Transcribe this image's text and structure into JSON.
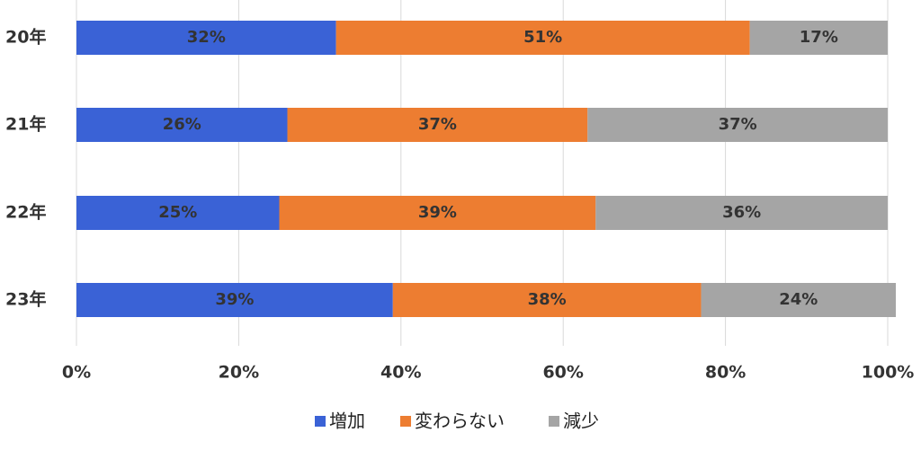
{
  "chart_data": {
    "type": "stacked-bar-horizontal",
    "categories": [
      "20年",
      "21年",
      "22年",
      "23年"
    ],
    "series": [
      {
        "name": "増加",
        "color": "#3a62d6",
        "values": [
          32,
          26,
          25,
          39
        ],
        "value_labels": [
          "32%",
          "26%",
          "25%",
          "39%"
        ]
      },
      {
        "name": "変わらない",
        "color": "#ed7d31",
        "values": [
          51,
          37,
          39,
          38
        ],
        "value_labels": [
          "51%",
          "37%",
          "39%",
          "38%"
        ]
      },
      {
        "name": "減少",
        "color": "#a5a5a5",
        "values": [
          17,
          37,
          36,
          24
        ],
        "value_labels": [
          "17%",
          "37%",
          "36%",
          "24%"
        ]
      }
    ],
    "xlim": [
      0,
      100
    ],
    "xticks": [
      {
        "value": 0,
        "label": "0%"
      },
      {
        "value": 20,
        "label": "20%"
      },
      {
        "value": 40,
        "label": "40%"
      },
      {
        "value": 60,
        "label": "60%"
      },
      {
        "value": 80,
        "label": "80%"
      },
      {
        "value": 100,
        "label": "100%"
      }
    ],
    "grid": true,
    "legend": "bottom"
  }
}
